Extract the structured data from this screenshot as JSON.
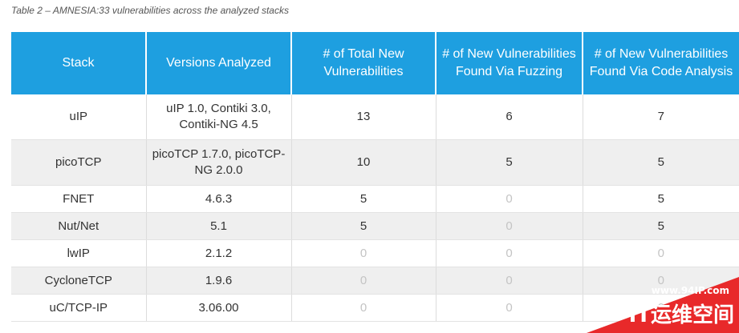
{
  "caption": "Table 2 – AMNESIA:33 vulnerabilities across the analyzed stacks",
  "colors": {
    "header_bg": "#1e9fe0",
    "header_text": "#ffffff",
    "row_shade": "#efefef",
    "zero_text": "#c4c4c4",
    "watermark_red": "#e8292a"
  },
  "table": {
    "headers": [
      "Stack",
      "Versions Analyzed",
      "# of Total New Vulnerabilities",
      "# of New Vulnerabilities Found Via Fuzzing",
      "# of New Vulnerabilities Found Via Code Analysis"
    ],
    "rows": [
      {
        "stack": "uIP",
        "versions": "uIP 1.0, Contiki 3.0, Contiki-NG 4.5",
        "total": "13",
        "fuzzing": "6",
        "code_analysis": "7"
      },
      {
        "stack": "picoTCP",
        "versions": "picoTCP 1.7.0, picoTCP-NG 2.0.0",
        "total": "10",
        "fuzzing": "5",
        "code_analysis": "5"
      },
      {
        "stack": "FNET",
        "versions": "4.6.3",
        "total": "5",
        "fuzzing": "0",
        "code_analysis": "5"
      },
      {
        "stack": "Nut/Net",
        "versions": "5.1",
        "total": "5",
        "fuzzing": "0",
        "code_analysis": "5"
      },
      {
        "stack": "lwIP",
        "versions": "2.1.2",
        "total": "0",
        "fuzzing": "0",
        "code_analysis": "0"
      },
      {
        "stack": "CycloneTCP",
        "versions": "1.9.6",
        "total": "0",
        "fuzzing": "0",
        "code_analysis": "0"
      },
      {
        "stack": "uC/TCP-IP",
        "versions": "3.06.00",
        "total": "0",
        "fuzzing": "0",
        "code_analysis": "0"
      }
    ]
  },
  "watermark": {
    "url": "www.94IP.com",
    "name": "IT运维空间"
  }
}
